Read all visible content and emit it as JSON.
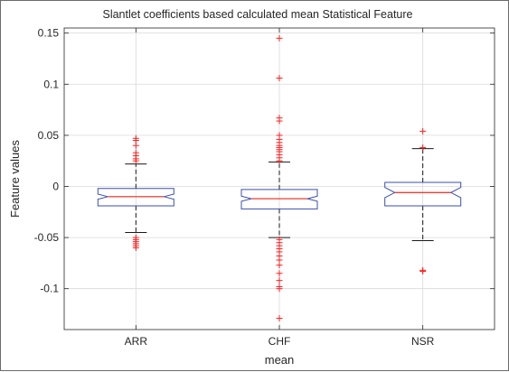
{
  "chart_data": {
    "type": "boxplot",
    "title": "Slantlet coefficients based calculated mean Statistical Feature",
    "xlabel": "mean",
    "ylabel": "Feature values",
    "ylim": [
      -0.14,
      0.155
    ],
    "yticks": [
      0.15,
      0.1,
      0.05,
      0,
      -0.05,
      -0.1
    ],
    "ytick_labels": [
      "0.15",
      "0.1",
      "0.05",
      "0",
      "-0.05",
      "-0.1"
    ],
    "grid": true,
    "notched": true,
    "categories": [
      "ARR",
      "CHF",
      "NSR"
    ],
    "boxes": [
      {
        "category": "ARR",
        "whisker_low": -0.045,
        "q1": -0.019,
        "median": -0.01,
        "q3": -0.002,
        "whisker_high": 0.022,
        "notch_low": -0.0125,
        "notch_high": -0.0075,
        "outliers": [
          0.047,
          0.045,
          0.04,
          0.033,
          0.03,
          0.027,
          0.025,
          -0.05,
          -0.052,
          -0.054,
          -0.056,
          -0.058,
          -0.06
        ]
      },
      {
        "category": "CHF",
        "whisker_low": -0.05,
        "q1": -0.022,
        "median": -0.012,
        "q3": -0.003,
        "whisker_high": 0.024,
        "notch_low": -0.0145,
        "notch_high": -0.0095,
        "outliers": [
          0.145,
          0.106,
          0.067,
          0.064,
          0.05,
          0.046,
          0.043,
          0.04,
          0.038,
          0.036,
          0.034,
          0.031,
          0.028,
          0.025,
          -0.052,
          -0.055,
          -0.058,
          -0.061,
          -0.064,
          -0.068,
          -0.072,
          -0.077,
          -0.085,
          -0.092,
          -0.098,
          -0.1,
          -0.129
        ]
      },
      {
        "category": "NSR",
        "whisker_low": -0.053,
        "q1": -0.019,
        "median": -0.006,
        "q3": 0.004,
        "whisker_high": 0.037,
        "notch_low": -0.011,
        "notch_high": -0.001,
        "outliers": [
          0.054,
          0.038,
          -0.082,
          -0.083
        ]
      }
    ],
    "colors": {
      "box": "#3a4fb0",
      "median": "#e8271c",
      "outlier": "#ff1e1e",
      "whisker": "#1a1a1a",
      "grid": "#d9d9d9",
      "axes": "#262626"
    }
  }
}
